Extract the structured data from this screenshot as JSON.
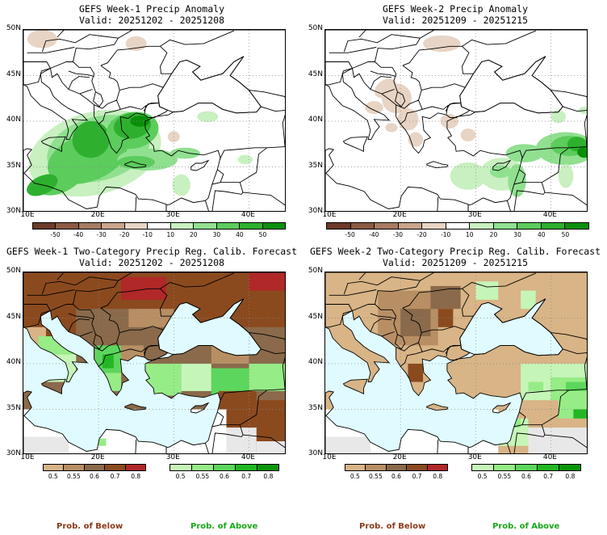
{
  "panels": [
    {
      "title": "GEFS Week-1 Precip Anomaly",
      "valid": "Valid: 20251202 - 20251208",
      "type": "anomaly"
    },
    {
      "title": "GEFS Week-2 Precip Anomaly",
      "valid": "Valid: 20251209 - 20251215",
      "type": "anomaly"
    },
    {
      "title": "GEFS Week-1 Two-Category Precip Reg. Calib. Forecast",
      "valid": "Valid: 20251202 - 20251208",
      "type": "prob"
    },
    {
      "title": "GEFS Week-2 Two-Category Precip Reg. Calib. Forecast",
      "valid": "Valid: 20251209 - 20251215",
      "type": "prob"
    }
  ],
  "lat_labels": [
    "50N",
    "45N",
    "40N",
    "35N",
    "30N"
  ],
  "lon_labels": [
    "10E",
    "20E",
    "30E",
    "40E"
  ],
  "anomaly_scale": {
    "ticks": [
      "-50",
      "-40",
      "-30",
      "-20",
      "-10",
      "10",
      "20",
      "30",
      "40",
      "50"
    ],
    "colors": [
      "#6b3a2a",
      "#8a5a44",
      "#a67b62",
      "#c9a48c",
      "#e8d4c4",
      "#ffffff",
      "#c8f0c0",
      "#90e090",
      "#5ccc5c",
      "#2eb02e",
      "#0a8f0a"
    ]
  },
  "below_scale": {
    "ticks": [
      "0.5",
      "0.55",
      "0.6",
      "0.7",
      "0.8"
    ],
    "colors": [
      "#d8b486",
      "#b88f64",
      "#8a6a4a",
      "#8b4a1e",
      "#b02828"
    ]
  },
  "above_scale": {
    "ticks": [
      "0.5",
      "0.55",
      "0.6",
      "0.7",
      "0.8"
    ],
    "colors": [
      "#c6f5b8",
      "#96ec86",
      "#5cd65c",
      "#22b722",
      "#0a960a"
    ]
  },
  "labels": {
    "prob_below": "Prob. of Below",
    "prob_above": "Prob. of Above"
  },
  "colors": {
    "below_label": "#8b3a1a",
    "above_label": "#1aa81a",
    "sea": "#e0fbff"
  }
}
